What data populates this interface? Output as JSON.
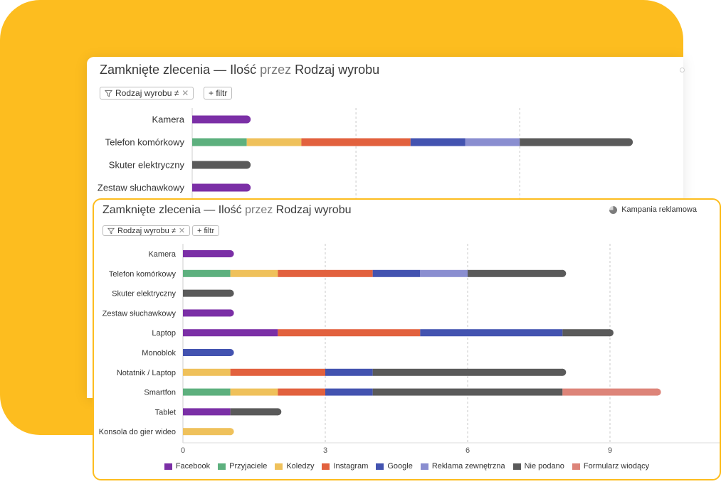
{
  "colors": {
    "background_accent": "#fdbd1f",
    "facebook": "#7b2fa6",
    "przyjaciele": "#5db07e",
    "koledzy": "#efc15b",
    "instagram": "#e2613e",
    "google": "#4353b0",
    "reklama": "#8a8ed0",
    "nie_podano": "#5a5a5a",
    "formularz": "#dd8479"
  },
  "back_panel": {
    "title_part1": "Zamknięte zlecenia — Ilość",
    "title_przez": "przez",
    "title_part2": "Rodzaj wyrobu",
    "filter_chip": "Rodzaj wyrobu ≠",
    "add_filter": "+ filtr"
  },
  "front_panel": {
    "title_part1": "Zamknięte zlecenia — Ilość",
    "title_przez": "przez",
    "title_part2": "Rodzaj wyrobu",
    "filter_chip": "Rodzaj wyrobu ≠",
    "add_filter": "+ filtr",
    "campaign_button": "Kampania reklamowa"
  },
  "icons": {
    "filter": "filter-icon",
    "remove": "close-icon",
    "pie": "pie-chart-icon"
  },
  "chart_data": [
    {
      "type": "bar",
      "orientation": "horizontal",
      "stacked": true,
      "title": "Zamknięte zlecenia — Ilość przez Rodzaj wyrobu",
      "categories": [
        "Kamera",
        "Telefon komórkowy",
        "Skuter elektryczny",
        "Zestaw słuchawkowy"
      ],
      "series": [
        {
          "name": "Facebook",
          "color": "#7b2fa6",
          "values": [
            1,
            0,
            0,
            1
          ]
        },
        {
          "name": "Przyjaciele",
          "color": "#5db07e",
          "values": [
            0,
            1,
            0,
            0
          ]
        },
        {
          "name": "Koledzy",
          "color": "#efc15b",
          "values": [
            0,
            1,
            0,
            0
          ]
        },
        {
          "name": "Instagram",
          "color": "#e2613e",
          "values": [
            0,
            2,
            0,
            0
          ]
        },
        {
          "name": "Google",
          "color": "#4353b0",
          "values": [
            0,
            1,
            0,
            0
          ]
        },
        {
          "name": "Reklama zewnętrzna",
          "color": "#8a8ed0",
          "values": [
            0,
            1,
            0,
            0
          ]
        },
        {
          "name": "Nie podano",
          "color": "#5a5a5a",
          "values": [
            0,
            2,
            1,
            0
          ]
        }
      ],
      "xlim": [
        0,
        10
      ],
      "grid_values": [
        3,
        6
      ]
    },
    {
      "type": "bar",
      "orientation": "horizontal",
      "stacked": true,
      "title": "Zamknięte zlecenia — Ilość przez Rodzaj wyrobu",
      "categories": [
        "Kamera",
        "Telefon komórkowy",
        "Skuter elektryczny",
        "Zestaw słuchawkowy",
        "Laptop",
        "Monoblok",
        "Notatnik / Laptop",
        "Smartfon",
        "Tablet",
        "Konsola do gier wideo"
      ],
      "series": [
        {
          "name": "Facebook",
          "color": "#7b2fa6",
          "values": [
            1,
            0,
            0,
            1,
            2,
            0,
            0,
            0,
            1,
            0
          ]
        },
        {
          "name": "Przyjaciele",
          "color": "#5db07e",
          "values": [
            0,
            1,
            0,
            0,
            0,
            0,
            0,
            1,
            0,
            0
          ]
        },
        {
          "name": "Koledzy",
          "color": "#efc15b",
          "values": [
            0,
            1,
            0,
            0,
            0,
            0,
            1,
            1,
            0,
            1
          ]
        },
        {
          "name": "Instagram",
          "color": "#e2613e",
          "values": [
            0,
            2,
            0,
            0,
            3,
            0,
            2,
            1,
            0,
            0
          ]
        },
        {
          "name": "Google",
          "color": "#4353b0",
          "values": [
            0,
            1,
            0,
            0,
            3,
            1,
            1,
            1,
            0,
            0
          ]
        },
        {
          "name": "Reklama zewnętrzna",
          "color": "#8a8ed0",
          "values": [
            0,
            1,
            0,
            0,
            0,
            0,
            0,
            0,
            0,
            0
          ]
        },
        {
          "name": "Nie podano",
          "color": "#5a5a5a",
          "values": [
            0,
            2,
            1,
            0,
            1,
            0,
            4,
            4,
            1,
            0
          ]
        },
        {
          "name": "Formularz wiodący",
          "color": "#dd8479",
          "values": [
            0,
            0,
            0,
            0,
            0,
            0,
            0,
            2,
            0,
            0
          ]
        }
      ],
      "xlim": [
        0,
        11.25
      ],
      "x_ticks": [
        0,
        3,
        6,
        9
      ],
      "x_tick_labels": [
        "0",
        "3",
        "6",
        "9"
      ],
      "legend": "bottom"
    }
  ]
}
